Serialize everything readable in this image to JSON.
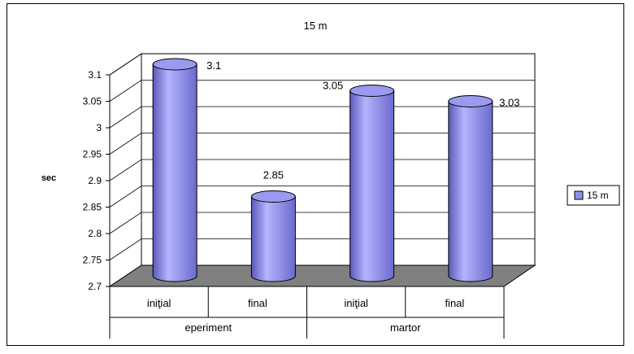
{
  "chart_data": {
    "type": "bar",
    "style": "3d-cylinder",
    "title": "15 m",
    "xlabel": "",
    "ylabel": "sec",
    "ylim": [
      2.7,
      3.1
    ],
    "yticks": [
      "2.7",
      "2.75",
      "2.8",
      "2.85",
      "2.9",
      "2.95",
      "3",
      "3.05",
      "3.1"
    ],
    "grid": true,
    "legend_position": "right",
    "categories": [
      "iniţial",
      "final",
      "iniţial",
      "final"
    ],
    "groups": [
      {
        "label": "eperiment",
        "span": 2
      },
      {
        "label": "martor",
        "span": 2
      }
    ],
    "series": [
      {
        "name": "15 m",
        "values": [
          3.1,
          2.85,
          3.05,
          3.03
        ],
        "labels": [
          "3.1",
          "2.85",
          "3.05",
          "3.03"
        ],
        "color": "#8f8fe6"
      }
    ],
    "floor_color": "#808080"
  }
}
